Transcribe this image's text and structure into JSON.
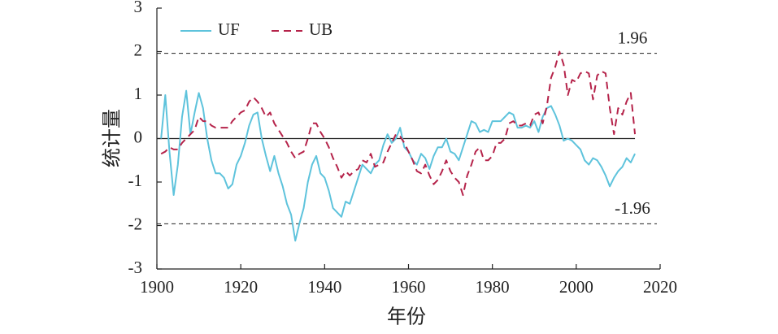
{
  "chart_data": {
    "type": "line",
    "xlabel": "年份",
    "ylabel": "统计量",
    "x": [
      1901,
      1902,
      1903,
      1904,
      1905,
      1906,
      1907,
      1908,
      1909,
      1910,
      1911,
      1912,
      1913,
      1914,
      1915,
      1916,
      1917,
      1918,
      1919,
      1920,
      1921,
      1922,
      1923,
      1924,
      1925,
      1926,
      1927,
      1928,
      1929,
      1930,
      1931,
      1932,
      1933,
      1934,
      1935,
      1936,
      1937,
      1938,
      1939,
      1940,
      1941,
      1942,
      1943,
      1944,
      1945,
      1946,
      1947,
      1948,
      1949,
      1950,
      1951,
      1952,
      1953,
      1954,
      1955,
      1956,
      1957,
      1958,
      1959,
      1960,
      1961,
      1962,
      1963,
      1964,
      1965,
      1966,
      1967,
      1968,
      1969,
      1970,
      1971,
      1972,
      1973,
      1974,
      1975,
      1976,
      1977,
      1978,
      1979,
      1980,
      1981,
      1982,
      1983,
      1984,
      1985,
      1986,
      1987,
      1988,
      1989,
      1990,
      1991,
      1992,
      1993,
      1994,
      1995,
      1996,
      1997,
      1998,
      1999,
      2000,
      2001,
      2002,
      2003,
      2004,
      2005,
      2006,
      2007,
      2008,
      2009,
      2010,
      2011,
      2012,
      2013,
      2014
    ],
    "series": [
      {
        "name": "UF",
        "color": "#5ec3dc",
        "style": "solid",
        "values": [
          0,
          1.0,
          -0.3,
          -1.3,
          -0.6,
          0.5,
          1.1,
          0.1,
          0.6,
          1.05,
          0.7,
          0.0,
          -0.5,
          -0.8,
          -0.8,
          -0.9,
          -1.15,
          -1.05,
          -0.6,
          -0.4,
          -0.1,
          0.3,
          0.55,
          0.6,
          0.0,
          -0.4,
          -0.75,
          -0.4,
          -0.8,
          -1.1,
          -1.5,
          -1.75,
          -2.35,
          -1.95,
          -1.6,
          -1.0,
          -0.6,
          -0.4,
          -0.8,
          -0.9,
          -1.2,
          -1.6,
          -1.7,
          -1.8,
          -1.45,
          -1.5,
          -1.2,
          -0.9,
          -0.6,
          -0.7,
          -0.8,
          -0.6,
          -0.5,
          -0.15,
          0.1,
          -0.1,
          0.0,
          0.25,
          -0.2,
          -0.3,
          -0.5,
          -0.6,
          -0.35,
          -0.45,
          -0.7,
          -0.4,
          -0.2,
          -0.2,
          0.0,
          -0.3,
          -0.35,
          -0.5,
          -0.2,
          0.1,
          0.4,
          0.35,
          0.15,
          0.2,
          0.15,
          0.4,
          0.4,
          0.4,
          0.5,
          0.6,
          0.55,
          0.25,
          0.25,
          0.3,
          0.25,
          0.4,
          0.15,
          0.5,
          0.7,
          0.75,
          0.55,
          0.3,
          -0.05,
          0.0,
          -0.05,
          -0.15,
          -0.25,
          -0.5,
          -0.6,
          -0.45,
          -0.5,
          -0.65,
          -0.85,
          -1.1,
          -0.9,
          -0.75,
          -0.65,
          -0.45,
          -0.55,
          -0.35
        ]
      },
      {
        "name": "UB",
        "color": "#b5234a",
        "style": "dashed",
        "values": [
          -0.35,
          -0.3,
          -0.2,
          -0.25,
          -0.25,
          -0.1,
          0.0,
          0.1,
          0.2,
          0.5,
          0.4,
          0.4,
          0.3,
          0.25,
          0.25,
          0.25,
          0.25,
          0.4,
          0.5,
          0.6,
          0.65,
          0.85,
          0.95,
          0.85,
          0.7,
          0.5,
          0.6,
          0.35,
          0.2,
          0.05,
          -0.1,
          -0.3,
          -0.45,
          -0.35,
          -0.3,
          0.0,
          0.35,
          0.35,
          0.15,
          0.0,
          -0.2,
          -0.45,
          -0.65,
          -0.9,
          -0.75,
          -0.85,
          -0.75,
          -0.7,
          -0.5,
          -0.55,
          -0.35,
          -0.65,
          -0.6,
          -0.55,
          -0.3,
          -0.1,
          0.1,
          0.05,
          -0.1,
          -0.3,
          -0.5,
          -0.75,
          -0.8,
          -0.6,
          -0.85,
          -1.05,
          -0.95,
          -0.75,
          -0.5,
          -0.75,
          -0.9,
          -1.0,
          -1.3,
          -0.85,
          -0.6,
          -0.3,
          -0.2,
          -0.5,
          -0.5,
          -0.4,
          -0.1,
          -0.1,
          0.0,
          0.35,
          0.4,
          0.3,
          0.3,
          0.35,
          0.3,
          0.55,
          0.6,
          0.35,
          0.75,
          1.4,
          1.65,
          2.0,
          1.7,
          1.0,
          1.35,
          1.3,
          1.5,
          1.55,
          1.5,
          0.9,
          1.45,
          1.55,
          1.5,
          0.7,
          0.1,
          0.7,
          0.55,
          0.85,
          1.05,
          0.1
        ]
      }
    ],
    "reference_lines": [
      {
        "value": 1.96,
        "label": "1.96",
        "style": "dashed"
      },
      {
        "value": -1.96,
        "label": "-1.96",
        "style": "dashed"
      },
      {
        "value": 0,
        "style": "solid"
      }
    ],
    "xlim": [
      1900,
      2020
    ],
    "xticks": [
      1900,
      1920,
      1940,
      1960,
      1980,
      2000,
      2020
    ],
    "ylim": [
      -3,
      3
    ],
    "yticks": [
      -3,
      -2,
      -1,
      0,
      1,
      2,
      3
    ],
    "legend": "upper left"
  }
}
